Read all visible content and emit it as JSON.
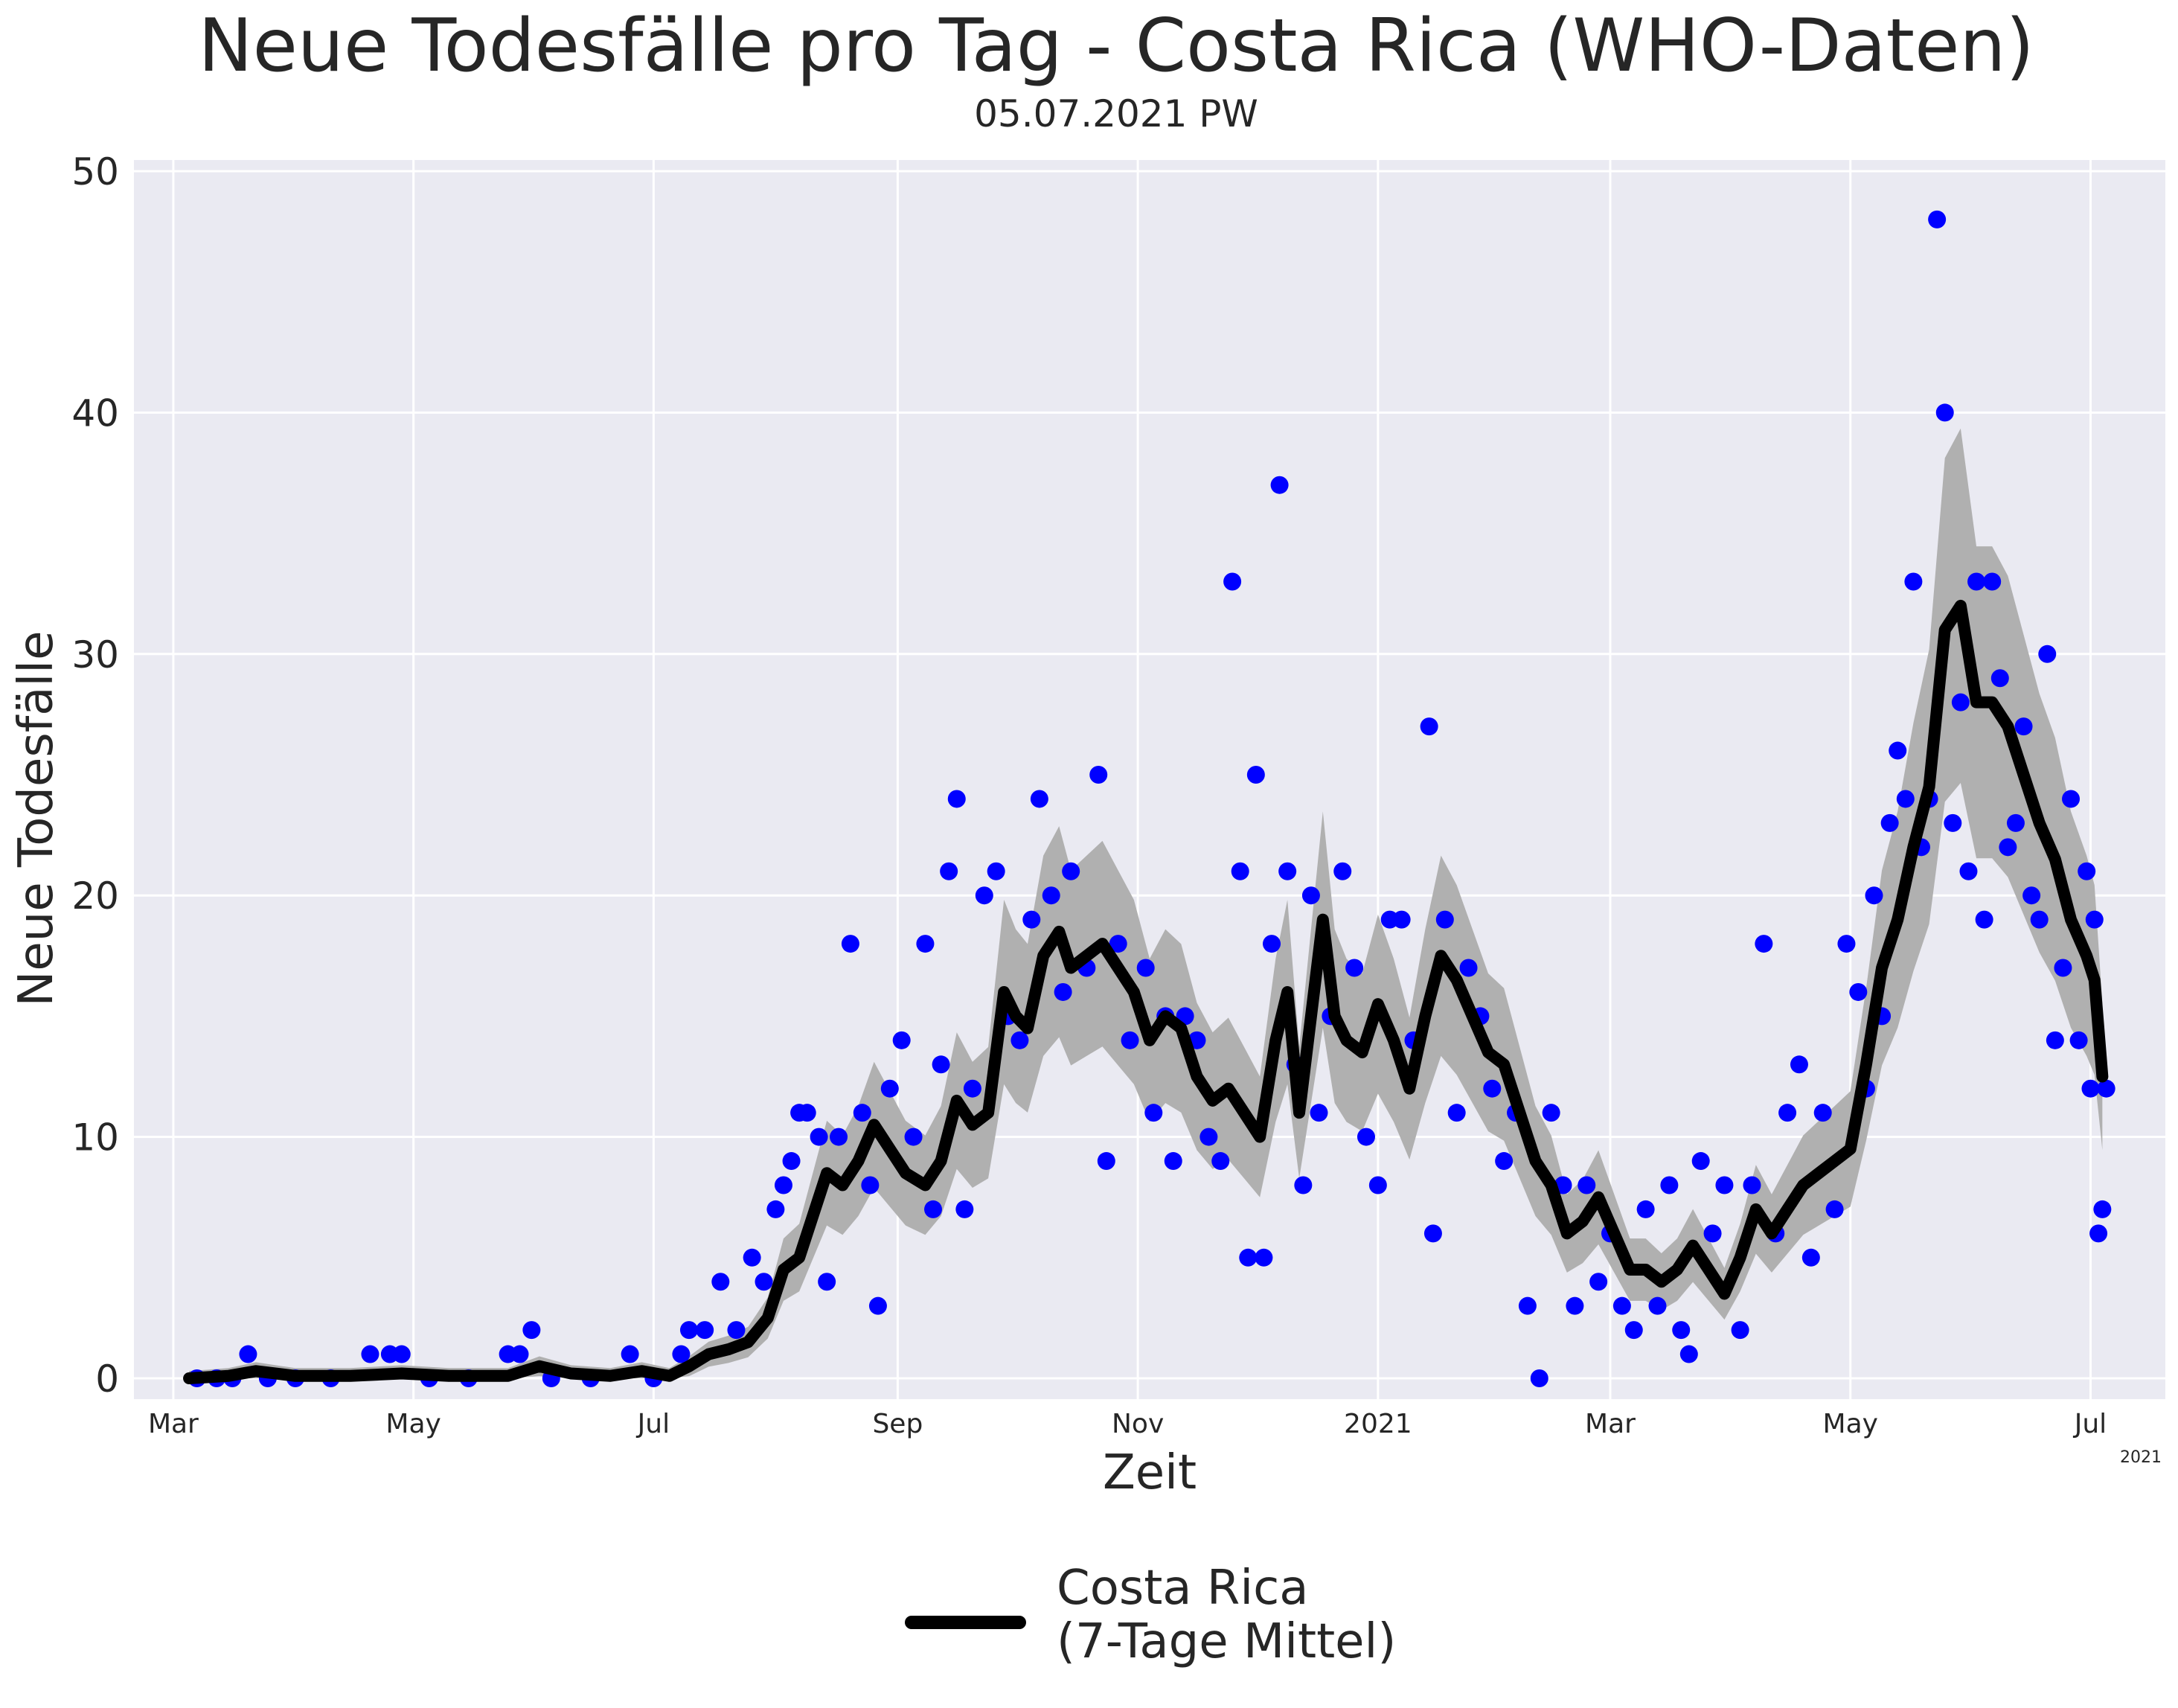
{
  "chart_data": {
    "type": "line",
    "title": "Neue Todesfälle pro Tag - Costa Rica (WHO-Daten)",
    "subtitle": "05.07.2021 PW",
    "xlabel": "Zeit",
    "ylabel": "Neue Todesfälle",
    "x_offset_label": "2021",
    "ylim": [
      0,
      50
    ],
    "xlim": [
      "2020-02-20",
      "2021-07-20"
    ],
    "y_ticks": [
      0,
      10,
      20,
      30,
      40,
      50
    ],
    "x_ticks": [
      {
        "date": "2020-03-01",
        "label": "Mar"
      },
      {
        "date": "2020-05-01",
        "label": "May"
      },
      {
        "date": "2020-07-01",
        "label": "Jul"
      },
      {
        "date": "2020-09-01",
        "label": "Sep"
      },
      {
        "date": "2020-11-01",
        "label": "Nov"
      },
      {
        "date": "2021-01-01",
        "label": "2021"
      },
      {
        "date": "2021-03-01",
        "label": "Mar"
      },
      {
        "date": "2021-05-01",
        "label": "May"
      },
      {
        "date": "2021-07-01",
        "label": "Jul"
      }
    ],
    "grid": true,
    "legend_position": "bottom-center",
    "colors": {
      "points": "#0000ff",
      "line": "#000000",
      "band": "#b0b0b0",
      "background": "#eaeaf2"
    },
    "series": [
      {
        "name": "Costa Rica\n(7-Tage Mittel)",
        "kind": "7-day-mean-line",
        "points": [
          [
            "2020-03-05",
            0
          ],
          [
            "2020-03-15",
            0.1
          ],
          [
            "2020-03-22",
            0.3
          ],
          [
            "2020-04-01",
            0.1
          ],
          [
            "2020-04-15",
            0.1
          ],
          [
            "2020-04-28",
            0.2
          ],
          [
            "2020-05-10",
            0.1
          ],
          [
            "2020-05-25",
            0.1
          ],
          [
            "2020-06-02",
            0.5
          ],
          [
            "2020-06-10",
            0.2
          ],
          [
            "2020-06-20",
            0.1
          ],
          [
            "2020-06-28",
            0.3
          ],
          [
            "2020-07-05",
            0.1
          ],
          [
            "2020-07-10",
            0.5
          ],
          [
            "2020-07-15",
            1
          ],
          [
            "2020-07-20",
            1.2
          ],
          [
            "2020-07-25",
            1.5
          ],
          [
            "2020-07-30",
            2.5
          ],
          [
            "2020-08-03",
            4.5
          ],
          [
            "2020-08-07",
            5
          ],
          [
            "2020-08-10",
            6.5
          ],
          [
            "2020-08-14",
            8.5
          ],
          [
            "2020-08-18",
            8
          ],
          [
            "2020-08-22",
            9
          ],
          [
            "2020-08-26",
            10.5
          ],
          [
            "2020-08-30",
            9.5
          ],
          [
            "2020-09-03",
            8.5
          ],
          [
            "2020-09-08",
            8
          ],
          [
            "2020-09-12",
            9
          ],
          [
            "2020-09-16",
            11.5
          ],
          [
            "2020-09-20",
            10.5
          ],
          [
            "2020-09-24",
            11
          ],
          [
            "2020-09-28",
            16
          ],
          [
            "2020-10-01",
            15
          ],
          [
            "2020-10-04",
            14.5
          ],
          [
            "2020-10-08",
            17.5
          ],
          [
            "2020-10-12",
            18.5
          ],
          [
            "2020-10-15",
            17
          ],
          [
            "2020-10-19",
            17.5
          ],
          [
            "2020-10-23",
            18
          ],
          [
            "2020-10-27",
            17
          ],
          [
            "2020-10-31",
            16
          ],
          [
            "2020-11-04",
            14
          ],
          [
            "2020-11-08",
            15
          ],
          [
            "2020-11-12",
            14.5
          ],
          [
            "2020-11-16",
            12.5
          ],
          [
            "2020-11-20",
            11.5
          ],
          [
            "2020-11-24",
            12
          ],
          [
            "2020-11-28",
            11
          ],
          [
            "2020-12-02",
            10
          ],
          [
            "2020-12-06",
            14
          ],
          [
            "2020-12-09",
            16
          ],
          [
            "2020-12-12",
            11
          ],
          [
            "2020-12-15",
            15
          ],
          [
            "2020-12-18",
            19
          ],
          [
            "2020-12-21",
            15
          ],
          [
            "2020-12-24",
            14
          ],
          [
            "2020-12-28",
            13.5
          ],
          [
            "2021-01-01",
            15.5
          ],
          [
            "2021-01-05",
            14
          ],
          [
            "2021-01-09",
            12
          ],
          [
            "2021-01-13",
            15
          ],
          [
            "2021-01-17",
            17.5
          ],
          [
            "2021-01-21",
            16.5
          ],
          [
            "2021-01-25",
            15
          ],
          [
            "2021-01-29",
            13.5
          ],
          [
            "2021-02-02",
            13
          ],
          [
            "2021-02-06",
            11
          ],
          [
            "2021-02-10",
            9
          ],
          [
            "2021-02-14",
            8
          ],
          [
            "2021-02-18",
            6
          ],
          [
            "2021-02-22",
            6.5
          ],
          [
            "2021-02-26",
            7.5
          ],
          [
            "2021-03-02",
            6
          ],
          [
            "2021-03-06",
            4.5
          ],
          [
            "2021-03-10",
            4.5
          ],
          [
            "2021-03-14",
            4
          ],
          [
            "2021-03-18",
            4.5
          ],
          [
            "2021-03-22",
            5.5
          ],
          [
            "2021-03-26",
            4.5
          ],
          [
            "2021-03-30",
            3.5
          ],
          [
            "2021-04-03",
            5
          ],
          [
            "2021-04-07",
            7
          ],
          [
            "2021-04-11",
            6
          ],
          [
            "2021-04-15",
            7
          ],
          [
            "2021-04-19",
            8
          ],
          [
            "2021-04-23",
            8.5
          ],
          [
            "2021-04-27",
            9
          ],
          [
            "2021-05-01",
            9.5
          ],
          [
            "2021-05-05",
            13
          ],
          [
            "2021-05-09",
            17
          ],
          [
            "2021-05-13",
            19
          ],
          [
            "2021-05-17",
            22
          ],
          [
            "2021-05-21",
            24.5
          ],
          [
            "2021-05-25",
            31
          ],
          [
            "2021-05-29",
            32
          ],
          [
            "2021-06-02",
            28
          ],
          [
            "2021-06-06",
            28
          ],
          [
            "2021-06-10",
            27
          ],
          [
            "2021-06-14",
            25
          ],
          [
            "2021-06-18",
            23
          ],
          [
            "2021-06-22",
            21.5
          ],
          [
            "2021-06-26",
            19
          ],
          [
            "2021-06-30",
            17.5
          ],
          [
            "2021-07-02",
            16.5
          ],
          [
            "2021-07-04",
            12.5
          ]
        ]
      },
      {
        "kind": "daily-points",
        "points": [
          [
            "2020-03-07",
            0
          ],
          [
            "2020-03-12",
            0
          ],
          [
            "2020-03-16",
            0
          ],
          [
            "2020-03-20",
            1
          ],
          [
            "2020-03-25",
            0
          ],
          [
            "2020-04-01",
            0
          ],
          [
            "2020-04-10",
            0
          ],
          [
            "2020-04-20",
            1
          ],
          [
            "2020-04-25",
            1
          ],
          [
            "2020-04-28",
            1
          ],
          [
            "2020-05-05",
            0
          ],
          [
            "2020-05-15",
            0
          ],
          [
            "2020-05-25",
            1
          ],
          [
            "2020-05-28",
            1
          ],
          [
            "2020-05-31",
            2
          ],
          [
            "2020-06-05",
            0
          ],
          [
            "2020-06-15",
            0
          ],
          [
            "2020-06-25",
            1
          ],
          [
            "2020-07-01",
            0
          ],
          [
            "2020-07-08",
            1
          ],
          [
            "2020-07-10",
            2
          ],
          [
            "2020-07-14",
            2
          ],
          [
            "2020-07-18",
            4
          ],
          [
            "2020-07-22",
            2
          ],
          [
            "2020-07-26",
            5
          ],
          [
            "2020-07-29",
            4
          ],
          [
            "2020-08-01",
            7
          ],
          [
            "2020-08-03",
            8
          ],
          [
            "2020-08-05",
            9
          ],
          [
            "2020-08-07",
            11
          ],
          [
            "2020-08-09",
            11
          ],
          [
            "2020-08-12",
            10
          ],
          [
            "2020-08-14",
            4
          ],
          [
            "2020-08-17",
            10
          ],
          [
            "2020-08-20",
            18
          ],
          [
            "2020-08-23",
            11
          ],
          [
            "2020-08-25",
            8
          ],
          [
            "2020-08-27",
            3
          ],
          [
            "2020-08-30",
            12
          ],
          [
            "2020-09-02",
            14
          ],
          [
            "2020-09-05",
            10
          ],
          [
            "2020-09-08",
            18
          ],
          [
            "2020-09-10",
            7
          ],
          [
            "2020-09-12",
            13
          ],
          [
            "2020-09-14",
            21
          ],
          [
            "2020-09-16",
            24
          ],
          [
            "2020-09-18",
            7
          ],
          [
            "2020-09-20",
            12
          ],
          [
            "2020-09-23",
            20
          ],
          [
            "2020-09-26",
            21
          ],
          [
            "2020-09-29",
            15
          ],
          [
            "2020-10-02",
            14
          ],
          [
            "2020-10-05",
            19
          ],
          [
            "2020-10-07",
            24
          ],
          [
            "2020-10-10",
            20
          ],
          [
            "2020-10-13",
            16
          ],
          [
            "2020-10-15",
            21
          ],
          [
            "2020-10-19",
            17
          ],
          [
            "2020-10-22",
            25
          ],
          [
            "2020-10-24",
            9
          ],
          [
            "2020-10-27",
            18
          ],
          [
            "2020-10-30",
            14
          ],
          [
            "2020-11-03",
            17
          ],
          [
            "2020-11-05",
            11
          ],
          [
            "2020-11-08",
            15
          ],
          [
            "2020-11-10",
            9
          ],
          [
            "2020-11-13",
            15
          ],
          [
            "2020-11-16",
            14
          ],
          [
            "2020-11-19",
            10
          ],
          [
            "2020-11-22",
            9
          ],
          [
            "2020-11-25",
            33
          ],
          [
            "2020-11-27",
            21
          ],
          [
            "2020-11-29",
            5
          ],
          [
            "2020-12-01",
            25
          ],
          [
            "2020-12-03",
            5
          ],
          [
            "2020-12-05",
            18
          ],
          [
            "2020-12-07",
            37
          ],
          [
            "2020-12-09",
            21
          ],
          [
            "2020-12-11",
            13
          ],
          [
            "2020-12-13",
            8
          ],
          [
            "2020-12-15",
            20
          ],
          [
            "2020-12-17",
            11
          ],
          [
            "2020-12-20",
            15
          ],
          [
            "2020-12-23",
            21
          ],
          [
            "2020-12-26",
            17
          ],
          [
            "2020-12-29",
            10
          ],
          [
            "2021-01-01",
            8
          ],
          [
            "2021-01-04",
            19
          ],
          [
            "2021-01-07",
            19
          ],
          [
            "2021-01-10",
            14
          ],
          [
            "2021-01-14",
            27
          ],
          [
            "2021-01-15",
            6
          ],
          [
            "2021-01-18",
            19
          ],
          [
            "2021-01-21",
            11
          ],
          [
            "2021-01-24",
            17
          ],
          [
            "2021-01-27",
            15
          ],
          [
            "2021-01-30",
            12
          ],
          [
            "2021-02-02",
            9
          ],
          [
            "2021-02-05",
            11
          ],
          [
            "2021-02-08",
            3
          ],
          [
            "2021-02-11",
            0
          ],
          [
            "2021-02-14",
            11
          ],
          [
            "2021-02-17",
            8
          ],
          [
            "2021-02-20",
            3
          ],
          [
            "2021-02-23",
            8
          ],
          [
            "2021-02-26",
            4
          ],
          [
            "2021-03-01",
            6
          ],
          [
            "2021-03-04",
            3
          ],
          [
            "2021-03-07",
            2
          ],
          [
            "2021-03-10",
            7
          ],
          [
            "2021-03-13",
            3
          ],
          [
            "2021-03-16",
            8
          ],
          [
            "2021-03-19",
            2
          ],
          [
            "2021-03-21",
            1
          ],
          [
            "2021-03-24",
            9
          ],
          [
            "2021-03-27",
            6
          ],
          [
            "2021-03-30",
            8
          ],
          [
            "2021-04-03",
            2
          ],
          [
            "2021-04-06",
            8
          ],
          [
            "2021-04-09",
            18
          ],
          [
            "2021-04-12",
            6
          ],
          [
            "2021-04-15",
            11
          ],
          [
            "2021-04-18",
            13
          ],
          [
            "2021-04-21",
            5
          ],
          [
            "2021-04-24",
            11
          ],
          [
            "2021-04-27",
            7
          ],
          [
            "2021-04-30",
            18
          ],
          [
            "2021-05-03",
            16
          ],
          [
            "2021-05-05",
            12
          ],
          [
            "2021-05-07",
            20
          ],
          [
            "2021-05-09",
            15
          ],
          [
            "2021-05-11",
            23
          ],
          [
            "2021-05-13",
            26
          ],
          [
            "2021-05-15",
            24
          ],
          [
            "2021-05-17",
            33
          ],
          [
            "2021-05-19",
            22
          ],
          [
            "2021-05-21",
            24
          ],
          [
            "2021-05-23",
            48
          ],
          [
            "2021-05-25",
            40
          ],
          [
            "2021-05-27",
            23
          ],
          [
            "2021-05-29",
            28
          ],
          [
            "2021-05-31",
            21
          ],
          [
            "2021-06-02",
            33
          ],
          [
            "2021-06-04",
            19
          ],
          [
            "2021-06-06",
            33
          ],
          [
            "2021-06-08",
            29
          ],
          [
            "2021-06-10",
            22
          ],
          [
            "2021-06-12",
            23
          ],
          [
            "2021-06-14",
            27
          ],
          [
            "2021-06-16",
            20
          ],
          [
            "2021-06-18",
            19
          ],
          [
            "2021-06-20",
            30
          ],
          [
            "2021-06-22",
            14
          ],
          [
            "2021-06-24",
            17
          ],
          [
            "2021-06-26",
            24
          ],
          [
            "2021-06-28",
            14
          ],
          [
            "2021-06-30",
            21
          ],
          [
            "2021-07-01",
            12
          ],
          [
            "2021-07-02",
            19
          ],
          [
            "2021-07-03",
            6
          ],
          [
            "2021-07-04",
            7
          ],
          [
            "2021-07-05",
            12
          ]
        ]
      }
    ]
  }
}
